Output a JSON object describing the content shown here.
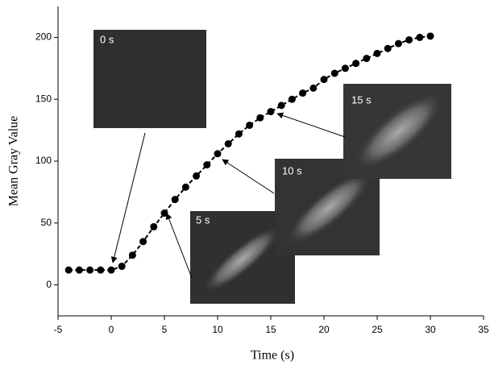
{
  "chart_data": {
    "type": "line",
    "x_label": "Time (s)",
    "y_label": "Mean Gray Value",
    "x": [
      -4,
      -3,
      -2,
      -1,
      0,
      1,
      2,
      3,
      4,
      5,
      6,
      7,
      8,
      9,
      10,
      11,
      12,
      13,
      14,
      15,
      16,
      17,
      18,
      19,
      20,
      21,
      22,
      23,
      24,
      25,
      26,
      27,
      28,
      29,
      30
    ],
    "values": [
      12,
      12,
      12,
      12,
      12,
      15,
      24,
      35,
      47,
      58,
      69,
      79,
      88,
      97,
      106,
      114,
      122,
      129,
      135,
      140,
      145,
      150,
      155,
      159,
      166,
      171,
      175,
      179,
      183,
      187,
      191,
      195,
      198,
      200,
      201
    ],
    "color": "#000000",
    "xlim": [
      -5,
      35
    ],
    "xticks": [
      -5,
      0,
      5,
      10,
      15,
      20,
      25,
      30,
      35
    ],
    "ylim": [
      -25,
      225
    ],
    "yticks": [
      0,
      50,
      100,
      150,
      200
    ],
    "annotations": [
      "0 s",
      "5 s",
      "10 s",
      "15 s"
    ]
  }
}
